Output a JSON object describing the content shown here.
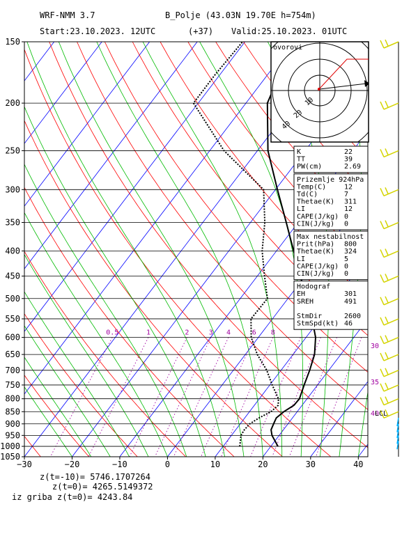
{
  "header": {
    "model": "WRF-NMM 3.7",
    "station": "B_Polje (43.03N 19.70E  h=754m)",
    "start": "Start:23.10.2023.   12UTC",
    "step": "(+37)",
    "valid": "Valid:25.10.2023.   01UTC"
  },
  "chart_data": {
    "type": "line",
    "title": "",
    "xlabel": "",
    "ylabel": "",
    "x_ticks": [
      -30,
      -20,
      -10,
      0,
      10,
      20,
      30,
      40
    ],
    "y_ticks": [
      150,
      200,
      250,
      300,
      350,
      400,
      450,
      500,
      550,
      600,
      650,
      700,
      750,
      800,
      850,
      900,
      950,
      1000,
      1050
    ],
    "xlim": [
      -30,
      42
    ],
    "ylim": [
      1050,
      150
    ],
    "grid": true,
    "mixing_ratio_labels": [
      "0.5",
      "1",
      "2",
      "3",
      "4",
      "6",
      "8"
    ],
    "mixing_ratio_values": [
      0.5,
      1,
      2,
      3,
      4,
      6,
      8
    ],
    "right_labels": [
      "30",
      "35",
      "40",
      "LCL"
    ],
    "series": [
      {
        "name": "",
        "style": "solid",
        "color": "#000000",
        "points": [
          [
            1000,
            21.5
          ],
          [
            950,
            18.5
          ],
          [
            925,
            17.4
          ],
          [
            900,
            17.0
          ],
          [
            875,
            16.6
          ],
          [
            850,
            17.2
          ],
          [
            825,
            18.3
          ],
          [
            800,
            18.4
          ],
          [
            750,
            17.2
          ],
          [
            700,
            16.0
          ],
          [
            650,
            14.5
          ],
          [
            600,
            12.0
          ],
          [
            550,
            8.3
          ],
          [
            500,
            3.8
          ],
          [
            450,
            -1.0
          ],
          [
            400,
            -6.4
          ],
          [
            350,
            -12.5
          ],
          [
            300,
            -19.6
          ],
          [
            250,
            -27.8
          ],
          [
            200,
            -35.5
          ],
          [
            175,
            -37.5
          ],
          [
            150,
            -39.5
          ]
        ]
      },
      {
        "name": "",
        "style": "dotted",
        "color": "#000000",
        "points": [
          [
            1000,
            13.5
          ],
          [
            950,
            12.0
          ],
          [
            925,
            11.8
          ],
          [
            900,
            12.0
          ],
          [
            875,
            13.0
          ],
          [
            850,
            14.5
          ],
          [
            825,
            15.0
          ],
          [
            800,
            14.0
          ],
          [
            750,
            10.5
          ],
          [
            700,
            7.0
          ],
          [
            650,
            2.5
          ],
          [
            600,
            -1.5
          ],
          [
            550,
            -4.5
          ],
          [
            500,
            -4.3
          ],
          [
            450,
            -8.5
          ],
          [
            400,
            -13.0
          ],
          [
            350,
            -17.0
          ],
          [
            300,
            -22.5
          ],
          [
            250,
            -37.0
          ],
          [
            200,
            -51.0
          ],
          [
            175,
            -51.0
          ],
          [
            150,
            -50.5
          ]
        ]
      }
    ]
  },
  "hodograph": {
    "label": "ovorovi",
    "speed_labels": [
      "10",
      "20",
      "30",
      "40"
    ]
  },
  "indices": [
    {
      "rows": [
        [
          "K",
          "22"
        ],
        [
          "TT",
          "39"
        ],
        [
          "PW(cm)",
          "2.69"
        ]
      ]
    },
    {
      "title": "Prizemlje 924hPa",
      "rows": [
        [
          "Temp(C)",
          "12"
        ],
        [
          "Td(C)",
          "7"
        ],
        [
          "Thetae(K)",
          "311"
        ],
        [
          "LI",
          "12"
        ],
        [
          "CAPE(J/kg)",
          "0"
        ],
        [
          "CIN(J/kg)",
          "0"
        ]
      ]
    },
    {
      "title": "Max nestabilnost",
      "rows": [
        [
          "Prit(hPa)",
          "800"
        ],
        [
          "Thetae(K)",
          "324"
        ],
        [
          "LI",
          "5"
        ],
        [
          "CAPE(J/kg)",
          "0"
        ],
        [
          "CIN(J/kg)",
          "0"
        ]
      ]
    },
    {
      "title": "Hodograf",
      "rows": [
        [
          "EH",
          "301"
        ],
        [
          "SREH",
          "491"
        ],
        [
          "",
          ""
        ],
        [
          "StmDir",
          "2600"
        ],
        [
          "StmSpd(kt)",
          "46"
        ]
      ]
    }
  ],
  "footer": {
    "line1": "z(t=-10)=  5746.1707264",
    "line2": "z(t=0)=   4265.5149372",
    "line3": "iz griba  z(t=0)=  4243.84"
  },
  "colors": {
    "isotherm": "#0000ff",
    "dry_adiabat": "#ff0000",
    "moist_adiabat": "#00bb00",
    "dry_adiabat_dark": "#8b5a00",
    "mixing_ratio": "#a000a0",
    "wind_barb": "#d4d400",
    "wind_barb_low": "#00b0ff"
  }
}
